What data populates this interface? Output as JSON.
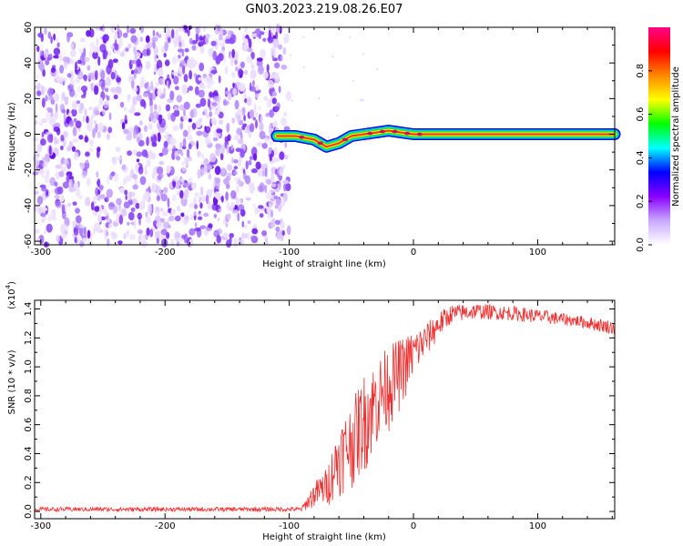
{
  "title": "GN03.2023.219.08.26.E07",
  "chart_data": [
    {
      "type": "heatmap",
      "xlabel": "Height of straight line (km)",
      "ylabel": "Frequency (Hz)",
      "xlim": [
        -305,
        162
      ],
      "ylim": [
        -62,
        60
      ],
      "x_ticks": [
        -300,
        -200,
        -100,
        0,
        100
      ],
      "y_ticks": [
        -60,
        -40,
        -20,
        0,
        20,
        40,
        60
      ],
      "colorbar": {
        "label": "Normalized spectral amplitude",
        "range": [
          0,
          1
        ],
        "ticks": [
          "0.0",
          "0.2",
          "0.4",
          "0.6",
          "0.8"
        ],
        "colors": [
          "#ffffff",
          "#c9a8ff",
          "#8800ff",
          "#0000ff",
          "#00ffff",
          "#00ff00",
          "#ffff00",
          "#ff8800",
          "#ff0000",
          "#ff0088"
        ]
      },
      "noise_region": {
        "x_range": [
          -305,
          -100
        ],
        "y_range": [
          -62,
          60
        ]
      },
      "ridge": [
        {
          "x": -110,
          "y": -1
        },
        {
          "x": -95,
          "y": -1
        },
        {
          "x": -80,
          "y": -3
        },
        {
          "x": -70,
          "y": -7
        },
        {
          "x": -60,
          "y": -5
        },
        {
          "x": -50,
          "y": -1
        },
        {
          "x": -40,
          "y": 0
        },
        {
          "x": -30,
          "y": 1
        },
        {
          "x": -20,
          "y": 2
        },
        {
          "x": -10,
          "y": 1
        },
        {
          "x": 0,
          "y": 0
        },
        {
          "x": 10,
          "y": 0
        },
        {
          "x": 162,
          "y": 0
        }
      ]
    },
    {
      "type": "line",
      "xlabel": "Height of straight line (km)",
      "ylabel": "SNR (10 * v/v)",
      "scale_label": "(x10",
      "scale_exponent": "4",
      "scale_close": ")",
      "xlim": [
        -305,
        162
      ],
      "ylim": [
        -0.05,
        1.46
      ],
      "x_ticks": [
        -300,
        -200,
        -100,
        0,
        100
      ],
      "y_ticks": [
        "0.0",
        "0.2",
        "0.4",
        "0.6",
        "0.8",
        "1.0",
        "1.2",
        "1.4"
      ],
      "series": [
        {
          "color": "#ee3030",
          "envelope": [
            {
              "x": -305,
              "lo": 0.0,
              "hi": 0.03
            },
            {
              "x": -90,
              "lo": 0.0,
              "hi": 0.03
            },
            {
              "x": -80,
              "lo": 0.02,
              "hi": 0.2
            },
            {
              "x": -70,
              "lo": 0.02,
              "hi": 0.3
            },
            {
              "x": -60,
              "lo": 0.1,
              "hi": 0.6
            },
            {
              "x": -50,
              "lo": 0.15,
              "hi": 0.75
            },
            {
              "x": -40,
              "lo": 0.25,
              "hi": 0.95
            },
            {
              "x": -30,
              "lo": 0.4,
              "hi": 1.05
            },
            {
              "x": -20,
              "lo": 0.55,
              "hi": 1.15
            },
            {
              "x": -10,
              "lo": 0.7,
              "hi": 1.2
            },
            {
              "x": 0,
              "lo": 0.9,
              "hi": 1.25
            },
            {
              "x": 10,
              "lo": 1.05,
              "hi": 1.3
            },
            {
              "x": 20,
              "lo": 1.18,
              "hi": 1.38
            },
            {
              "x": 30,
              "lo": 1.3,
              "hi": 1.43
            },
            {
              "x": 50,
              "lo": 1.33,
              "hi": 1.44
            },
            {
              "x": 80,
              "lo": 1.32,
              "hi": 1.42
            },
            {
              "x": 100,
              "lo": 1.3,
              "hi": 1.4
            },
            {
              "x": 130,
              "lo": 1.28,
              "hi": 1.36
            },
            {
              "x": 162,
              "lo": 1.22,
              "hi": 1.32
            }
          ]
        }
      ]
    }
  ]
}
